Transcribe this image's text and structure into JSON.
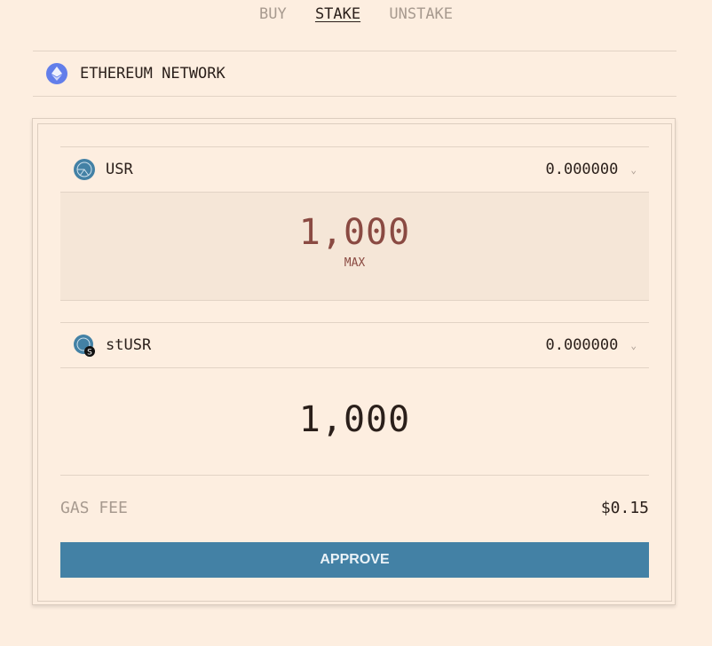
{
  "tabs": [
    {
      "label": "BUY",
      "active": false
    },
    {
      "label": "STAKE",
      "active": true
    },
    {
      "label": "UNSTAKE",
      "active": false
    }
  ],
  "network": {
    "label": "ETHEREUM NETWORK",
    "icon": "ethereum-icon"
  },
  "from": {
    "token": "USR",
    "balance": "0.000000",
    "amount": "1,000",
    "max_label": "MAX",
    "icon": "usr-token-icon"
  },
  "to": {
    "token": "stUSR",
    "balance": "0.000000",
    "amount": "1,000",
    "icon": "stusr-token-icon"
  },
  "gas": {
    "label": "GAS FEE",
    "value": "$0.15"
  },
  "approve_label": "APPROVE",
  "colors": {
    "background": "#fdeee0",
    "accent": "#4381a5",
    "amount_input": "#8a4a42",
    "input_bg": "#f5e6d7",
    "ethereum": "#627eea"
  }
}
